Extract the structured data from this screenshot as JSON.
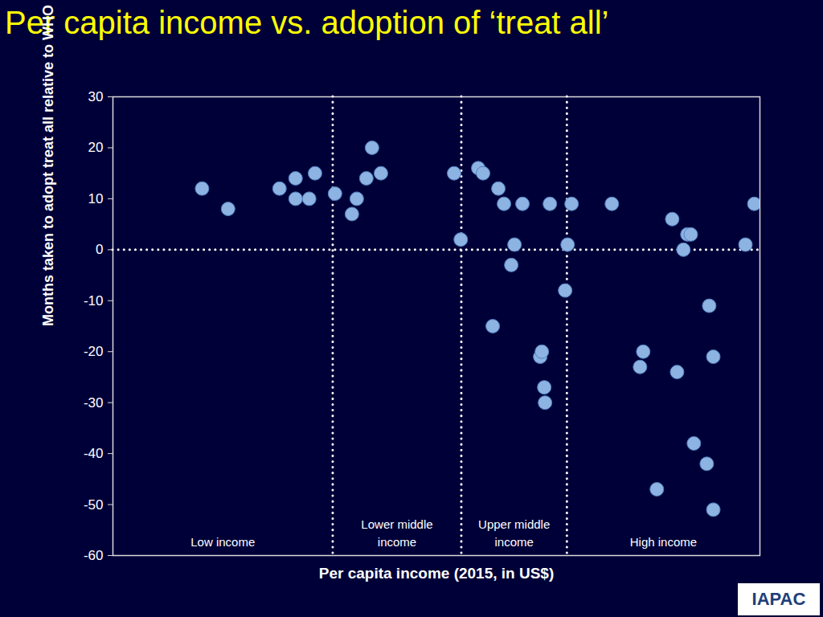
{
  "chart_data": {
    "type": "scatter",
    "title": "Per capita income vs. adoption of ‘treat all’",
    "x_label": "Per capita income (2015, in US$)",
    "y_label": "Months taken to adopt treat all relative to WHO",
    "x": [
      259,
      342,
      592,
      703,
      703,
      813,
      865,
      1071,
      1283,
      1351,
      1497,
      1590,
      1749,
      3819,
      4100,
      4943,
      5204,
      5769,
      6127,
      6506,
      7031,
      7278,
      7925,
      9576,
      9747,
      10000,
      10083,
      10620,
      12500,
      12830,
      13390,
      20580,
      27800,
      28770,
      33270,
      39200,
      41300,
      44200,
      46100,
      47800,
      49400,
      56700,
      58200,
      60800,
      60800,
      85700,
      94200
    ],
    "values": [
      12,
      8,
      12,
      14,
      10,
      10,
      15,
      11,
      7,
      10,
      14,
      20,
      15,
      15,
      2,
      16,
      15,
      -15,
      12,
      9,
      -3,
      1,
      9,
      -21,
      -20,
      -27,
      -30,
      9,
      -8,
      1,
      9,
      9,
      -23,
      -20,
      -47,
      6,
      -24,
      0,
      3,
      3,
      -38,
      -42,
      -11,
      -21,
      -51,
      1,
      9
    ],
    "color": "#8db3e2",
    "marker": "circle",
    "log": "x",
    "xlim": [
      100,
      100000
    ],
    "ylim": [
      -60,
      30
    ],
    "yticks": [
      -60,
      -50,
      -40,
      -30,
      -20,
      -10,
      0,
      10,
      20,
      30
    ],
    "tick_labels": "y",
    "grid": false,
    "reference_y": 0,
    "income_groups": {
      "thresholds": [
        1045,
        4125,
        12735
      ],
      "labels": [
        "Low income",
        "Lower middle\nincome",
        "Upper middle\nincome",
        "High income"
      ]
    },
    "logo": "IAPAC"
  }
}
